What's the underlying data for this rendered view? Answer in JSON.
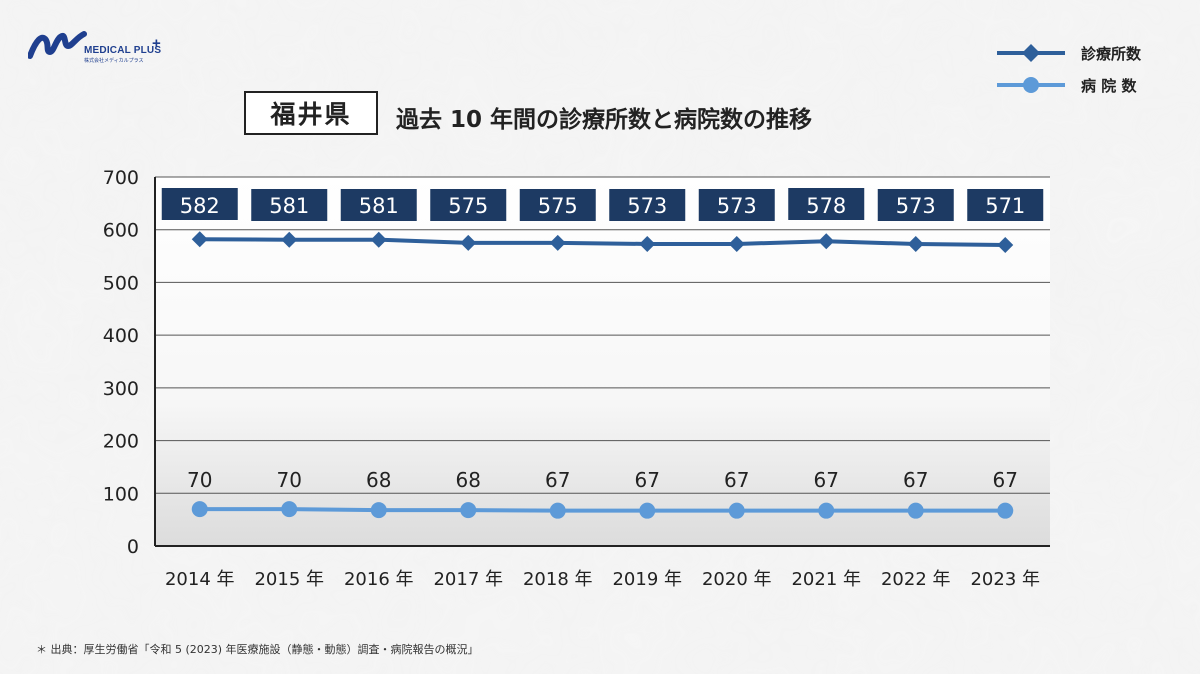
{
  "logo": {
    "name": "MEDICAL PLUS",
    "plus": "+",
    "sub": "株式会社メディカルプラス"
  },
  "header": {
    "region": "福井県",
    "title": "過去 10 年間の診療所数と病院数の推移"
  },
  "legend": {
    "clinics": {
      "label": "診療所数",
      "color": "#2e5f9a"
    },
    "hospitals": {
      "label": "病 院 数",
      "color": "#5d9ad8"
    }
  },
  "source_note": "＊ 出典：厚生労働省「令和 5 (2023) 年医療施設（静態・動態）調査・病院報告の概況」",
  "chart_data": {
    "type": "line",
    "title": "過去 10 年間の診療所数と病院数の推移",
    "x": [
      "2014 年",
      "2015 年",
      "2016 年",
      "2017 年",
      "2018 年",
      "2019 年",
      "2020 年",
      "2021 年",
      "2022 年",
      "2023 年"
    ],
    "ylim": [
      0,
      700
    ],
    "yticks": [
      0,
      100,
      200,
      300,
      400,
      500,
      600,
      700
    ],
    "grid": true,
    "legend_position": "top-right",
    "series": [
      {
        "name": "診療所数",
        "values": [
          582,
          581,
          581,
          575,
          575,
          573,
          573,
          578,
          573,
          571
        ],
        "color": "#2e5f9a",
        "marker": "diamond",
        "labels": "boxed"
      },
      {
        "name": "病 院 数",
        "values": [
          70,
          70,
          68,
          68,
          67,
          67,
          67,
          67,
          67,
          67
        ],
        "color": "#5d9ad8",
        "marker": "circle",
        "labels": "plain"
      }
    ]
  }
}
